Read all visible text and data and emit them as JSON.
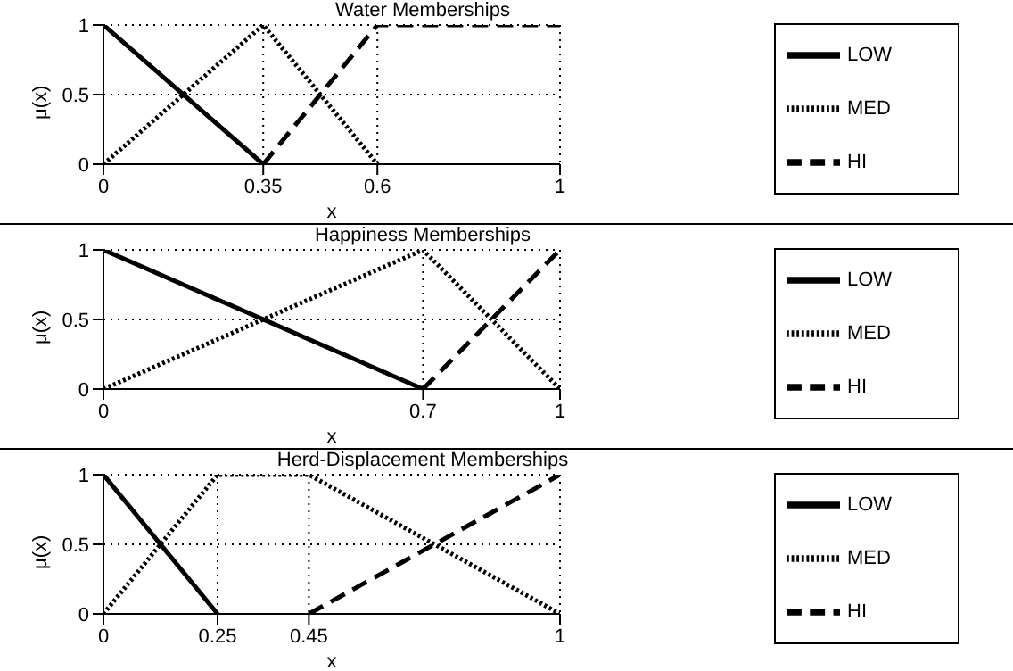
{
  "chart_data": [
    {
      "type": "line",
      "title": "Water Memberships",
      "xlabel": "x",
      "ylabel": "μ(x)",
      "xlim": [
        0,
        1
      ],
      "xticks": [
        0,
        0.35,
        0.6,
        1
      ],
      "ylim": [
        0,
        1
      ],
      "yticks": [
        0,
        0.5,
        1
      ],
      "grid": true,
      "legend": "right",
      "marker": "none",
      "series": [
        {
          "name": "LOW",
          "color": "#000000",
          "line_style": "solid",
          "x": [
            0,
            0.35
          ],
          "values": [
            1,
            0
          ]
        },
        {
          "name": "MED",
          "color": "#000000",
          "line_style": "dotted",
          "x": [
            0,
            0.35,
            0.6
          ],
          "values": [
            0,
            1,
            0
          ]
        },
        {
          "name": "HI",
          "color": "#000000",
          "line_style": "dashed",
          "x": [
            0.35,
            0.6,
            1
          ],
          "values": [
            0,
            1,
            1
          ]
        }
      ]
    },
    {
      "type": "line",
      "title": "Happiness Memberships",
      "xlabel": "x",
      "ylabel": "μ(x)",
      "xlim": [
        0,
        1
      ],
      "xticks": [
        0,
        0.7,
        1
      ],
      "ylim": [
        0,
        1
      ],
      "yticks": [
        0,
        0.5,
        1
      ],
      "grid": true,
      "legend": "right",
      "marker": "none",
      "series": [
        {
          "name": "LOW",
          "color": "#000000",
          "line_style": "solid",
          "x": [
            0,
            0.7
          ],
          "values": [
            1,
            0
          ]
        },
        {
          "name": "MED",
          "color": "#000000",
          "line_style": "dotted",
          "x": [
            0,
            0.7,
            1
          ],
          "values": [
            0,
            1,
            0
          ]
        },
        {
          "name": "HI",
          "color": "#000000",
          "line_style": "dashed",
          "x": [
            0.7,
            1
          ],
          "values": [
            0,
            1
          ]
        }
      ]
    },
    {
      "type": "line",
      "title": "Herd-Displacement Memberships",
      "xlabel": "x",
      "ylabel": "μ(x)",
      "xlim": [
        0,
        1
      ],
      "xticks": [
        0,
        0.25,
        0.45,
        1
      ],
      "ylim": [
        0,
        1
      ],
      "yticks": [
        0,
        0.5,
        1
      ],
      "grid": true,
      "legend": "right",
      "marker": "none",
      "series": [
        {
          "name": "LOW",
          "color": "#000000",
          "line_style": "solid",
          "x": [
            0,
            0.25
          ],
          "values": [
            1,
            0
          ]
        },
        {
          "name": "MED",
          "color": "#000000",
          "line_style": "dotted",
          "x": [
            0,
            0.25,
            0.45,
            1
          ],
          "values": [
            0,
            1,
            1,
            0
          ]
        },
        {
          "name": "HI",
          "color": "#000000",
          "line_style": "dashed",
          "x": [
            0.45,
            1
          ],
          "values": [
            0,
            1
          ]
        }
      ]
    }
  ]
}
